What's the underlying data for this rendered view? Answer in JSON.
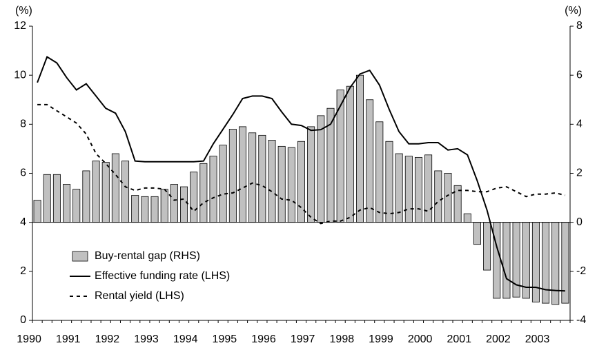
{
  "chart_data": {
    "type": "combo",
    "y_label": "(%)",
    "y2_label": "(%)",
    "categories": [
      "1990",
      null,
      null,
      null,
      "1991",
      null,
      null,
      null,
      "1992",
      null,
      null,
      null,
      "1993",
      null,
      null,
      null,
      "1994",
      null,
      null,
      null,
      "1995",
      null,
      null,
      null,
      "1996",
      null,
      null,
      null,
      "1997",
      null,
      null,
      null,
      "1998",
      null,
      null,
      null,
      "1999",
      null,
      null,
      null,
      "2000",
      null,
      null,
      null,
      "2001",
      null,
      null,
      null,
      "2002",
      null,
      null,
      null,
      "2003",
      null,
      null
    ],
    "series": [
      {
        "name": "Buy-rental gap (RHS)",
        "type": "bar",
        "axis": "y2",
        "color": "#c0c0c0",
        "values": [
          0.9,
          1.95,
          1.95,
          1.55,
          1.35,
          2.1,
          2.5,
          2.45,
          2.8,
          2.5,
          1.1,
          1.05,
          1.05,
          1.35,
          1.55,
          1.45,
          2.05,
          2.4,
          2.7,
          3.15,
          3.8,
          3.9,
          3.65,
          3.55,
          3.35,
          3.1,
          3.05,
          3.3,
          3.9,
          4.35,
          4.65,
          5.4,
          5.55,
          6.0,
          5.0,
          4.1,
          3.3,
          2.8,
          2.7,
          2.65,
          2.75,
          2.1,
          2.0,
          1.5,
          0.35,
          -0.9,
          -1.95,
          -3.1,
          -3.1,
          -3.05,
          -3.1,
          -3.25,
          -3.3,
          -3.35,
          -3.3
        ]
      },
      {
        "name": "Effective funding rate (LHS)",
        "type": "line",
        "color": "#000000",
        "dash": "solid",
        "values": [
          9.7,
          10.75,
          10.5,
          9.9,
          9.4,
          9.65,
          9.15,
          8.65,
          8.45,
          7.7,
          6.5,
          6.47,
          6.47,
          6.47,
          6.47,
          6.47,
          6.47,
          6.5,
          7.2,
          7.8,
          8.4,
          9.05,
          9.15,
          9.15,
          9.05,
          8.5,
          8.0,
          7.95,
          7.75,
          7.78,
          8.0,
          8.75,
          9.5,
          10.05,
          10.2,
          9.6,
          8.6,
          7.7,
          7.2,
          7.2,
          7.25,
          7.25,
          6.95,
          7.0,
          6.75,
          5.7,
          4.5,
          3.0,
          1.7,
          1.45,
          1.35,
          1.35,
          1.25,
          1.22,
          1.2
        ]
      },
      {
        "name": "Rental yield (LHS)",
        "type": "line",
        "color": "#000000",
        "dash": "dashed",
        "values": [
          8.8,
          8.8,
          8.55,
          8.3,
          8.05,
          7.6,
          6.8,
          6.4,
          5.95,
          5.45,
          5.3,
          5.4,
          5.4,
          5.35,
          4.9,
          4.95,
          4.45,
          4.8,
          5.0,
          5.15,
          5.2,
          5.4,
          5.6,
          5.5,
          5.25,
          4.95,
          4.9,
          4.6,
          4.2,
          3.95,
          4.05,
          4.05,
          4.2,
          4.5,
          4.6,
          4.4,
          4.35,
          4.4,
          4.55,
          4.55,
          4.45,
          4.85,
          5.1,
          5.3,
          5.3,
          5.25,
          5.25,
          5.4,
          5.45,
          5.25,
          5.05,
          5.15,
          5.15,
          5.2,
          5.1
        ]
      }
    ],
    "ylim": [
      0,
      12
    ],
    "yticks": [
      0,
      2,
      4,
      6,
      8,
      10,
      12
    ],
    "y2lim": [
      -4,
      8
    ],
    "y2ticks": [
      -4,
      -2,
      0,
      2,
      4,
      6,
      8
    ],
    "legend": "lower left",
    "grid": false
  }
}
